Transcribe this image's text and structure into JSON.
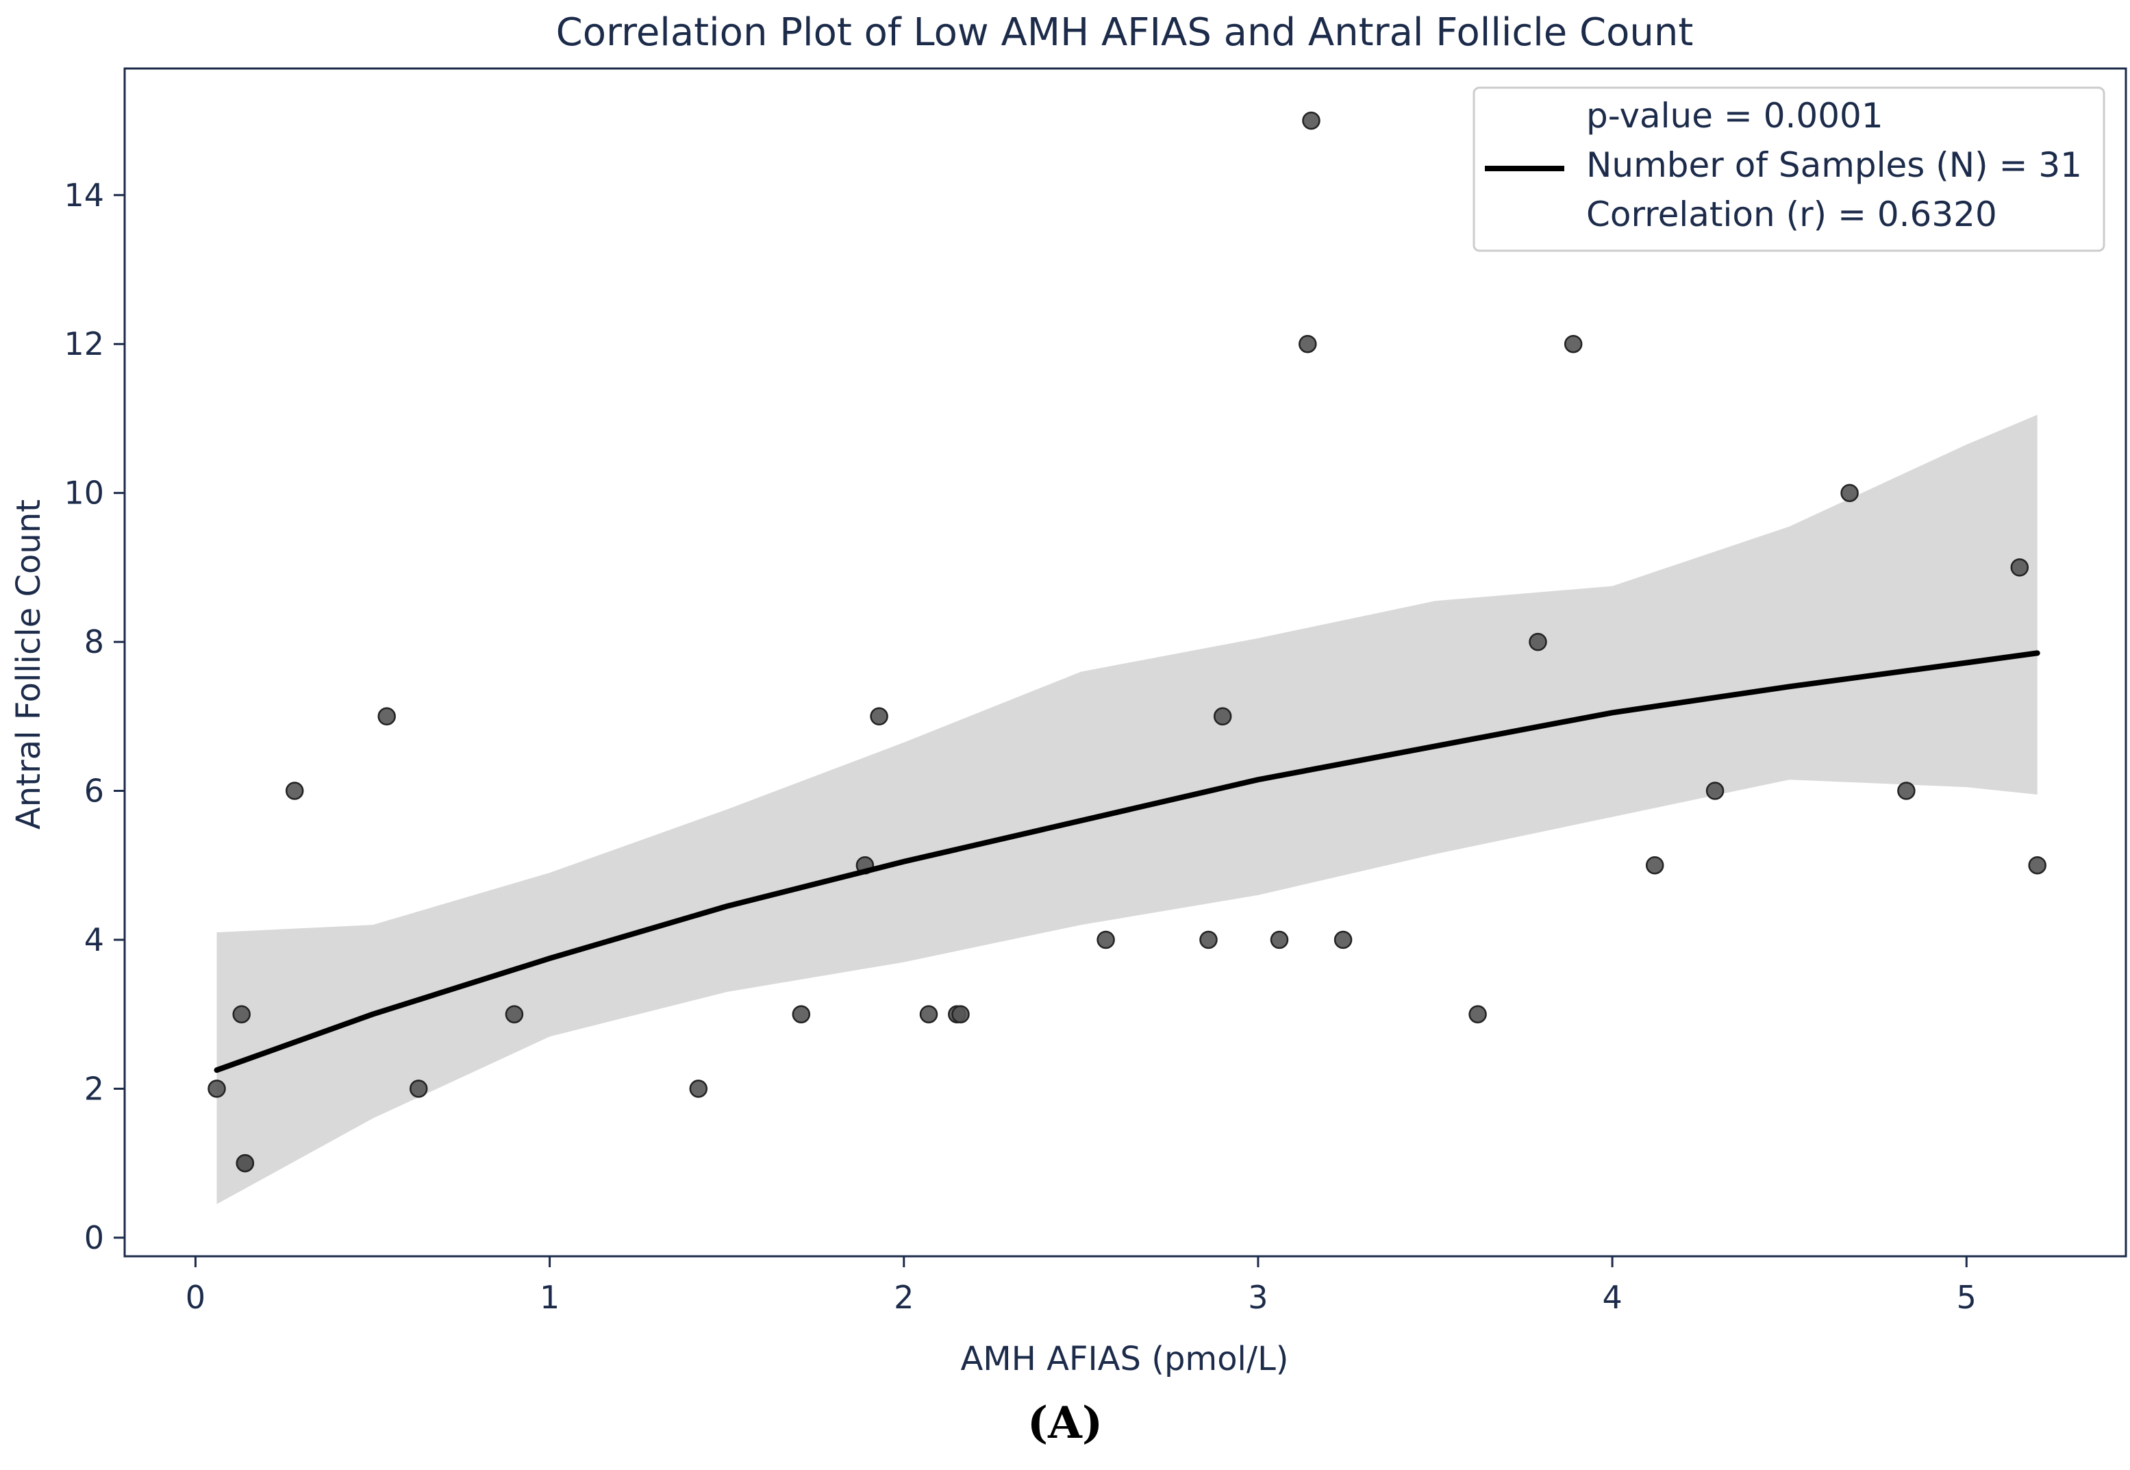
{
  "chart_data": {
    "type": "scatter",
    "title": "Correlation Plot of Low AMH AFIAS and Antral Follicle Count",
    "xlabel": "AMH AFIAS (pmol/L)",
    "ylabel": "Antral Follicle Count",
    "xlim": [
      -0.2,
      5.45
    ],
    "ylim": [
      -0.25,
      15.7
    ],
    "xticks": [
      0,
      1,
      2,
      3,
      4,
      5
    ],
    "yticks": [
      0,
      2,
      4,
      6,
      8,
      10,
      12,
      14
    ],
    "grid": false,
    "legend_position": "top-right",
    "points": {
      "name": "Samples",
      "color": "#555555",
      "x": [
        0.06,
        0.13,
        0.14,
        0.28,
        0.54,
        0.63,
        0.9,
        1.42,
        1.71,
        1.89,
        1.93,
        2.07,
        2.15,
        2.16,
        2.57,
        2.86,
        2.9,
        3.06,
        3.14,
        3.15,
        3.24,
        3.62,
        3.79,
        3.89,
        4.12,
        4.29,
        4.67,
        4.83,
        5.15,
        5.2,
        0.14
      ],
      "y": [
        2,
        3,
        1,
        6,
        7,
        2,
        3,
        2,
        3,
        5,
        7,
        3,
        3,
        3,
        4,
        4,
        7,
        4,
        12,
        15,
        4,
        3,
        8,
        12,
        5,
        6,
        10,
        6,
        9,
        5,
        1
      ]
    },
    "fit_line": {
      "name": "Regression fit",
      "color": "#000000",
      "x": [
        0.06,
        0.5,
        1.0,
        1.5,
        2.0,
        2.5,
        3.0,
        3.5,
        4.0,
        4.5,
        5.0,
        5.2
      ],
      "y": [
        2.25,
        3.0,
        3.75,
        4.45,
        5.05,
        5.6,
        6.15,
        6.6,
        7.05,
        7.4,
        7.72,
        7.85
      ]
    },
    "confidence_band": {
      "name": "Confidence interval",
      "color": "#d9d9d9",
      "x": [
        0.06,
        0.5,
        1.0,
        1.5,
        2.0,
        2.5,
        3.0,
        3.5,
        4.0,
        4.5,
        5.0,
        5.2
      ],
      "lower": [
        0.45,
        1.6,
        2.7,
        3.3,
        3.7,
        4.2,
        4.6,
        5.15,
        5.65,
        6.15,
        6.05,
        5.95
      ],
      "upper": [
        4.1,
        4.2,
        4.9,
        5.75,
        6.65,
        7.6,
        8.05,
        8.55,
        8.75,
        9.55,
        10.65,
        11.05
      ]
    },
    "legend": {
      "line1": "p-value = 0.0001",
      "line2": "Number of Samples (N) = 31",
      "line3": "Correlation (r) = 0.6320"
    }
  },
  "panel_label": "(A)",
  "colors": {
    "axis": "#1c2b4a",
    "point": "#555555",
    "band": "#d9d9d9",
    "line": "#000000"
  }
}
